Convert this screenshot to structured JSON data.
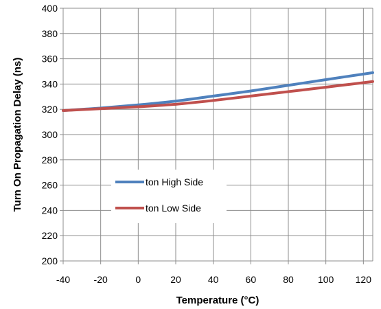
{
  "chart_data": {
    "type": "line",
    "xlabel": "Temperature (°C)",
    "ylabel": "Turn On Propagation Delay (ns)",
    "xlim": [
      -40,
      125
    ],
    "ylim": [
      200,
      400
    ],
    "x_ticks": [
      -40,
      -20,
      0,
      20,
      40,
      60,
      80,
      100,
      120
    ],
    "y_ticks": [
      200,
      220,
      240,
      260,
      280,
      300,
      320,
      340,
      360,
      380,
      400
    ],
    "grid": true,
    "legend_position": "center-left",
    "series": [
      {
        "name": "ton High Side",
        "color": "#4f81bd",
        "x": [
          -40,
          -20,
          0,
          20,
          40,
          60,
          80,
          100,
          125
        ],
        "y": [
          319,
          321,
          323.5,
          326.5,
          330.5,
          334.5,
          339,
          343.5,
          349
        ]
      },
      {
        "name": "ton Low Side",
        "color": "#c0504d",
        "x": [
          -40,
          -20,
          0,
          20,
          40,
          60,
          80,
          100,
          125
        ],
        "y": [
          319,
          320.5,
          322,
          324,
          327,
          330.5,
          334,
          337.5,
          342
        ]
      }
    ]
  }
}
